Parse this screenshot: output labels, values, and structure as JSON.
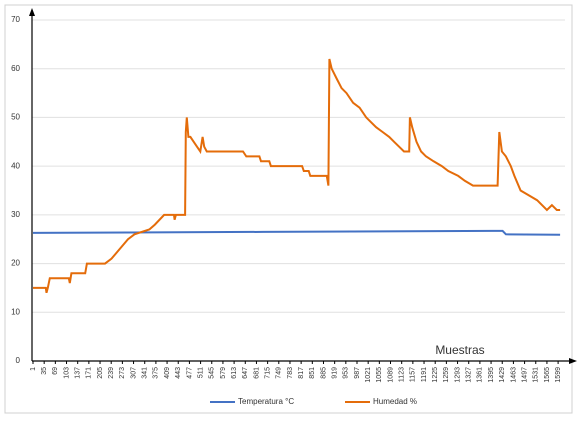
{
  "chart_data": {
    "type": "line",
    "x_label": "Muestras",
    "xlim": [
      1,
      1620
    ],
    "xticks": [
      1,
      35,
      69,
      103,
      137,
      171,
      205,
      239,
      273,
      307,
      341,
      375,
      409,
      443,
      477,
      511,
      545,
      579,
      613,
      647,
      681,
      715,
      749,
      783,
      817,
      851,
      885,
      919,
      953,
      987,
      1021,
      1055,
      1089,
      1123,
      1157,
      1191,
      1225,
      1259,
      1293,
      1327,
      1361,
      1395,
      1429,
      1463,
      1497,
      1531,
      1565,
      1599
    ],
    "ylim": [
      0,
      70
    ],
    "yticks": [
      0,
      10,
      20,
      30,
      40,
      50,
      60,
      70
    ],
    "grid": true,
    "legend": "bottom",
    "series": [
      {
        "name": "Temperatura °C",
        "color": "#4472c4",
        "x": [
          1,
          700,
          1400,
          1430,
          1440,
          1605
        ],
        "values": [
          26.3,
          26.5,
          26.7,
          26.7,
          26.0,
          25.9
        ]
      },
      {
        "name": "Humedad %",
        "color": "#e46c0a",
        "x": [
          1,
          40,
          42,
          46,
          52,
          110,
          113,
          118,
          160,
          165,
          220,
          240,
          265,
          290,
          310,
          355,
          372,
          400,
          430,
          432,
          436,
          464,
          466,
          469,
          474,
          480,
          490,
          500,
          510,
          517,
          522,
          530,
          640,
          650,
          690,
          695,
          720,
          725,
          820,
          825,
          840,
          845,
          895,
          900,
          903,
          910,
          925,
          940,
          955,
          975,
          995,
          1015,
          1045,
          1065,
          1085,
          1100,
          1115,
          1130,
          1146,
          1148,
          1155,
          1168,
          1182,
          1197,
          1220,
          1245,
          1265,
          1295,
          1315,
          1340,
          1415,
          1420,
          1428,
          1440,
          1455,
          1466,
          1485,
          1510,
          1535,
          1550,
          1565,
          1580,
          1595,
          1605
        ],
        "values": [
          15,
          15,
          14,
          15,
          17,
          17,
          16,
          18,
          18,
          20,
          20,
          21,
          23,
          25,
          26,
          27,
          28,
          30,
          30,
          29,
          30,
          30,
          47,
          50,
          46,
          46,
          45,
          44,
          43,
          46,
          44,
          43,
          43,
          42,
          42,
          41,
          41,
          40,
          40,
          39,
          39,
          38,
          38,
          36,
          62,
          60,
          58,
          56,
          55,
          53,
          52,
          50,
          48,
          47,
          46,
          45,
          44,
          43,
          43,
          50,
          48,
          45,
          43,
          42,
          41,
          40,
          39,
          38,
          37,
          36,
          36,
          47,
          43,
          42,
          40,
          38,
          35,
          34,
          33,
          32,
          31,
          32,
          31,
          31
        ]
      }
    ]
  }
}
